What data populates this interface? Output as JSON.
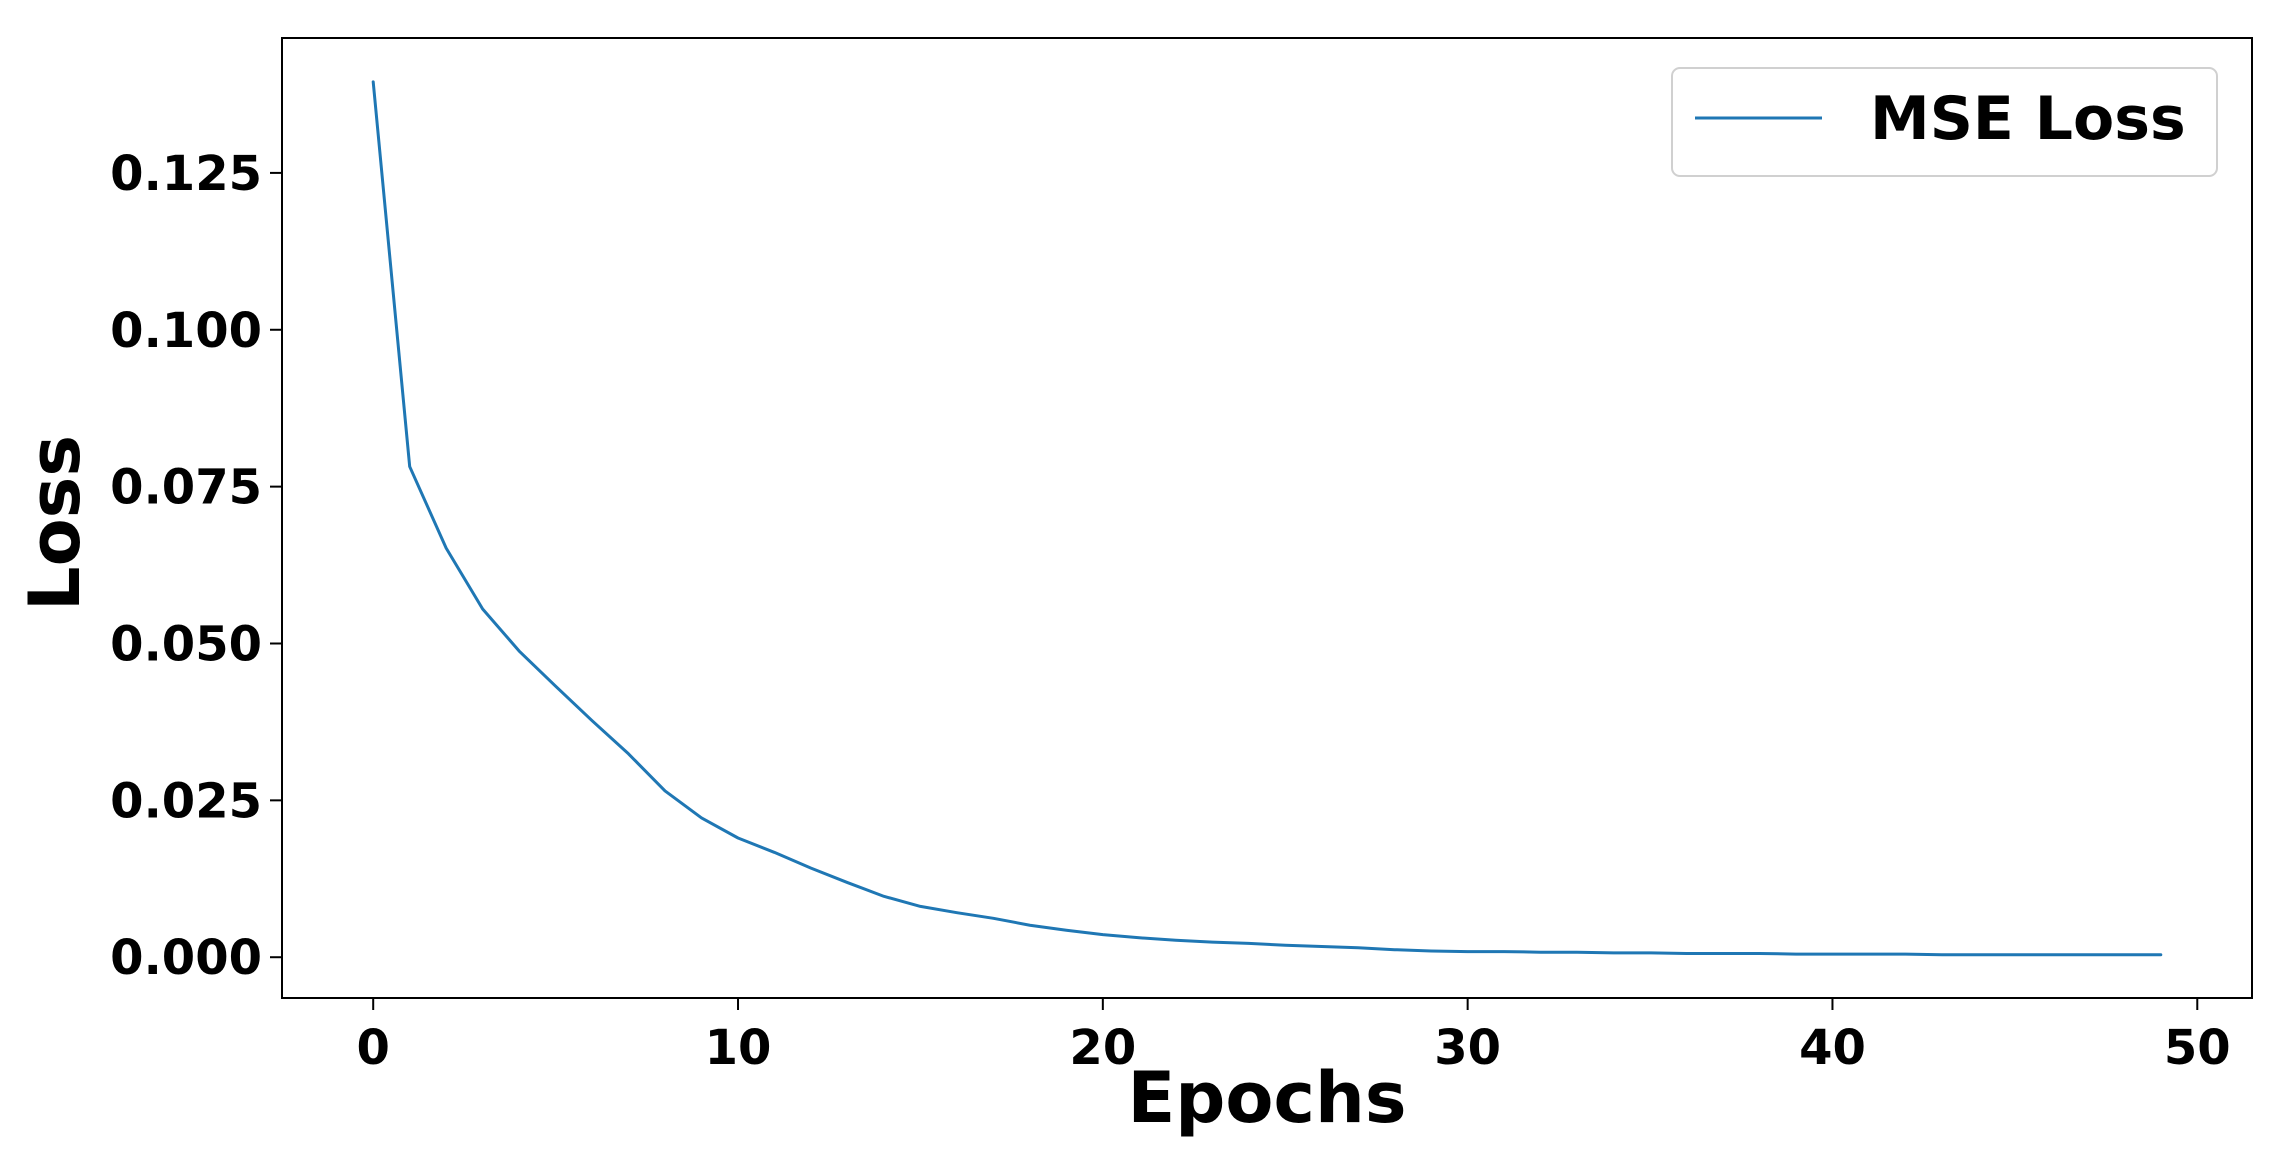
{
  "chart_data": {
    "type": "line",
    "title": "",
    "xlabel": "Epochs",
    "ylabel": "Loss",
    "xlim": [
      -2.5,
      51.5
    ],
    "ylim": [
      -0.0065,
      0.1465
    ],
    "x_ticks": [
      0,
      10,
      20,
      30,
      40,
      50
    ],
    "y_ticks": [
      0.0,
      0.025,
      0.05,
      0.075,
      0.1,
      0.125
    ],
    "x_tick_labels": [
      "0",
      "10",
      "20",
      "30",
      "40",
      "50"
    ],
    "y_tick_labels": [
      "0.000",
      "0.025",
      "0.050",
      "0.075",
      "0.100",
      "0.125"
    ],
    "grid": false,
    "legend_position": "top-right",
    "series": [
      {
        "name": "MSE Loss",
        "color": "#1f77b4",
        "x": [
          0,
          1,
          2,
          3,
          4,
          5,
          6,
          7,
          8,
          9,
          10,
          11,
          12,
          13,
          14,
          15,
          16,
          17,
          18,
          19,
          20,
          21,
          22,
          23,
          24,
          25,
          26,
          27,
          28,
          29,
          30,
          31,
          32,
          33,
          34,
          35,
          36,
          37,
          38,
          39,
          40,
          41,
          42,
          43,
          44,
          45,
          46,
          47,
          48,
          49
        ],
        "y": [
          0.1395,
          0.0782,
          0.0652,
          0.0555,
          0.0488,
          0.0432,
          0.0377,
          0.0324,
          0.0265,
          0.0222,
          0.019,
          0.0167,
          0.0142,
          0.0119,
          0.0097,
          0.0081,
          0.0071,
          0.0062,
          0.0051,
          0.0043,
          0.0036,
          0.0031,
          0.0027,
          0.0024,
          0.0022,
          0.0019,
          0.0017,
          0.0015,
          0.0012,
          0.001,
          0.0009,
          0.0009,
          0.0008,
          0.0008,
          0.0007,
          0.0007,
          0.0006,
          0.0006,
          0.0006,
          0.0005,
          0.0005,
          0.0005,
          0.0005,
          0.0004,
          0.0004,
          0.0004,
          0.0004,
          0.0004,
          0.0004,
          0.0004
        ]
      }
    ]
  }
}
